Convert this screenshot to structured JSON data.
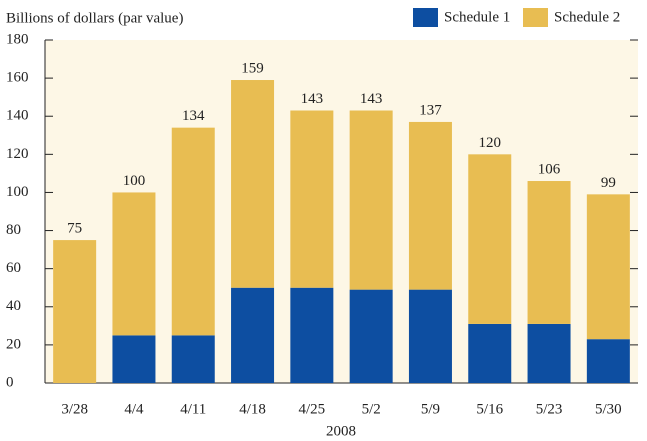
{
  "chart_data": {
    "type": "stacked_bar",
    "y_axis_label": "Billions of dollars (par value)",
    "x_axis_label": "2008",
    "categories": [
      "3/28",
      "4/4",
      "4/11",
      "4/18",
      "4/25",
      "5/2",
      "5/9",
      "5/16",
      "5/23",
      "5/30"
    ],
    "series": [
      {
        "name": "Schedule 1",
        "color": "#0d4ea1",
        "values": [
          0,
          25,
          25,
          50,
          50,
          49,
          49,
          31,
          31,
          23
        ]
      },
      {
        "name": "Schedule 2",
        "color": "#e8bd52",
        "values": [
          75,
          75,
          109,
          109,
          93,
          94,
          88,
          89,
          75,
          76
        ]
      }
    ],
    "totals": [
      75,
      100,
      134,
      159,
      143,
      143,
      137,
      120,
      106,
      99
    ],
    "ylim": [
      0,
      180
    ],
    "yticks": [
      0,
      20,
      40,
      60,
      80,
      100,
      120,
      140,
      160,
      180
    ],
    "legend": "top-right"
  }
}
